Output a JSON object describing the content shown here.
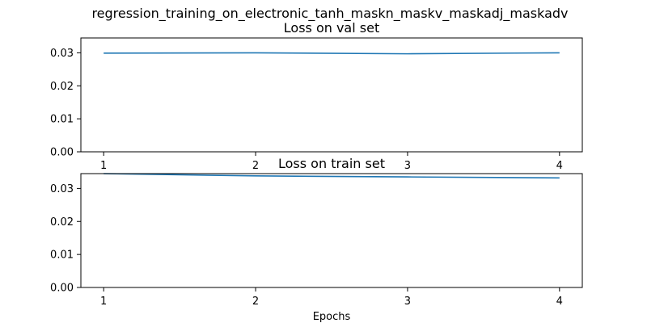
{
  "figure": {
    "suptitle": "regression_training_on_electronic_tanh_maskn_maskv_maskadj_maskadv"
  },
  "chart_data": [
    {
      "type": "line",
      "title": "Loss on val set",
      "xlabel": "",
      "ylabel": "",
      "x": [
        1,
        2,
        3,
        4
      ],
      "x_ticks": [
        "1",
        "2",
        "3",
        "4"
      ],
      "y_ticks": [
        "0.00",
        "0.01",
        "0.02",
        "0.03"
      ],
      "ylim": [
        0,
        0.0345
      ],
      "xlim": [
        0.85,
        4.15
      ],
      "grid": false,
      "series": [
        {
          "values": [
            0.0299,
            0.03,
            0.0297,
            0.03
          ],
          "color": "#1f77b4"
        }
      ]
    },
    {
      "type": "line",
      "title": "Loss on train set",
      "xlabel": "Epochs",
      "ylabel": "",
      "x": [
        1,
        2,
        3,
        4
      ],
      "x_ticks": [
        "1",
        "2",
        "3",
        "4"
      ],
      "y_ticks": [
        "0.00",
        "0.01",
        "0.02",
        "0.03"
      ],
      "ylim": [
        0,
        0.0345
      ],
      "xlim": [
        0.85,
        4.15
      ],
      "grid": false,
      "series": [
        {
          "values": [
            0.0345,
            0.0338,
            0.0335,
            0.0332
          ],
          "color": "#1f77b4"
        }
      ]
    }
  ]
}
